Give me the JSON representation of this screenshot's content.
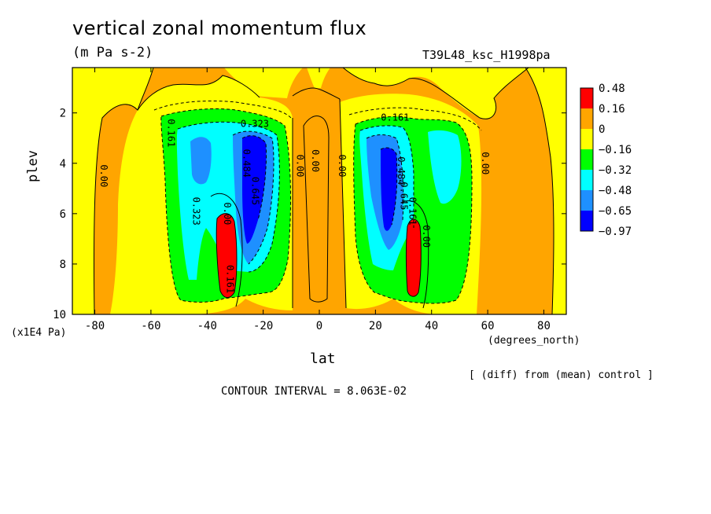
{
  "header": {
    "title": "vertical zonal momentum flux",
    "units": "(m Pa s-2)",
    "experiment": "T39L48_ksc_H1998pa"
  },
  "footer": {
    "diff_note": "[ (diff) from (mean) control ]",
    "contour_interval": "CONTOUR INTERVAL = 8.063E-02"
  },
  "chart_data": {
    "type": "heatmap",
    "title": "vertical zonal momentum flux",
    "xlabel": "lat",
    "x_units": "(degrees_north)",
    "ylabel": "plev",
    "y_units": "(x1E4 Pa)",
    "xlim": [
      -88,
      88
    ],
    "ylim": [
      10,
      0.2
    ],
    "x_ticks": [
      -80,
      -60,
      -40,
      -20,
      0,
      20,
      40,
      60,
      80
    ],
    "y_ticks": [
      2,
      4,
      6,
      8,
      10
    ],
    "legend": {
      "position": "right",
      "levels": [
        {
          "label": "0.48",
          "color": "#ff0000"
        },
        {
          "label": "0.16",
          "color": "#ffa500"
        },
        {
          "label": "0",
          "color": "#ffff00"
        },
        {
          "label": "−0.16",
          "color": "#00ff00"
        },
        {
          "label": "−0.32",
          "color": "#00ffff"
        },
        {
          "label": "−0.48",
          "color": "#1e90ff"
        },
        {
          "label": "−0.65",
          "color": "#0000ff"
        },
        {
          "label": "−0.97",
          "color": "#0000ff"
        }
      ]
    },
    "contour_labels": [
      {
        "text": "0.00",
        "lat": -77,
        "plev": 4.5,
        "rotate": true
      },
      {
        "text": "0.161",
        "lat": -53,
        "plev": 2.8,
        "rotate": true
      },
      {
        "text": "0.323",
        "lat": -23,
        "plev": 2.45,
        "rotate": false
      },
      {
        "text": "0.323",
        "lat": -44,
        "plev": 5.9,
        "rotate": true
      },
      {
        "text": "0.484",
        "lat": -26,
        "plev": 4.0,
        "rotate": true
      },
      {
        "text": "0.645",
        "lat": -23,
        "plev": 5.1,
        "rotate": true
      },
      {
        "text": "0.00",
        "lat": -33,
        "plev": 6.0,
        "rotate": true
      },
      {
        "text": "0.161",
        "lat": -32,
        "plev": 8.6,
        "rotate": true
      },
      {
        "text": "0.00",
        "lat": -7,
        "plev": 4.1,
        "rotate": true
      },
      {
        "text": "0.00",
        "lat": -1.5,
        "plev": 3.9,
        "rotate": true
      },
      {
        "text": "0.00",
        "lat": 8,
        "plev": 4.1,
        "rotate": true
      },
      {
        "text": "0.161",
        "lat": 27,
        "plev": 2.2,
        "rotate": false
      },
      {
        "text": "0.484",
        "lat": 29,
        "plev": 4.3,
        "rotate": true
      },
      {
        "text": "0.645",
        "lat": 30,
        "plev": 5.3,
        "rotate": true
      },
      {
        "text": "0.161",
        "lat": 33,
        "plev": 5.9,
        "rotate": true
      },
      {
        "text": "0.00",
        "lat": 38,
        "plev": 6.9,
        "rotate": true
      },
      {
        "text": "0.00",
        "lat": 59,
        "plev": 4.0,
        "rotate": true
      }
    ]
  }
}
